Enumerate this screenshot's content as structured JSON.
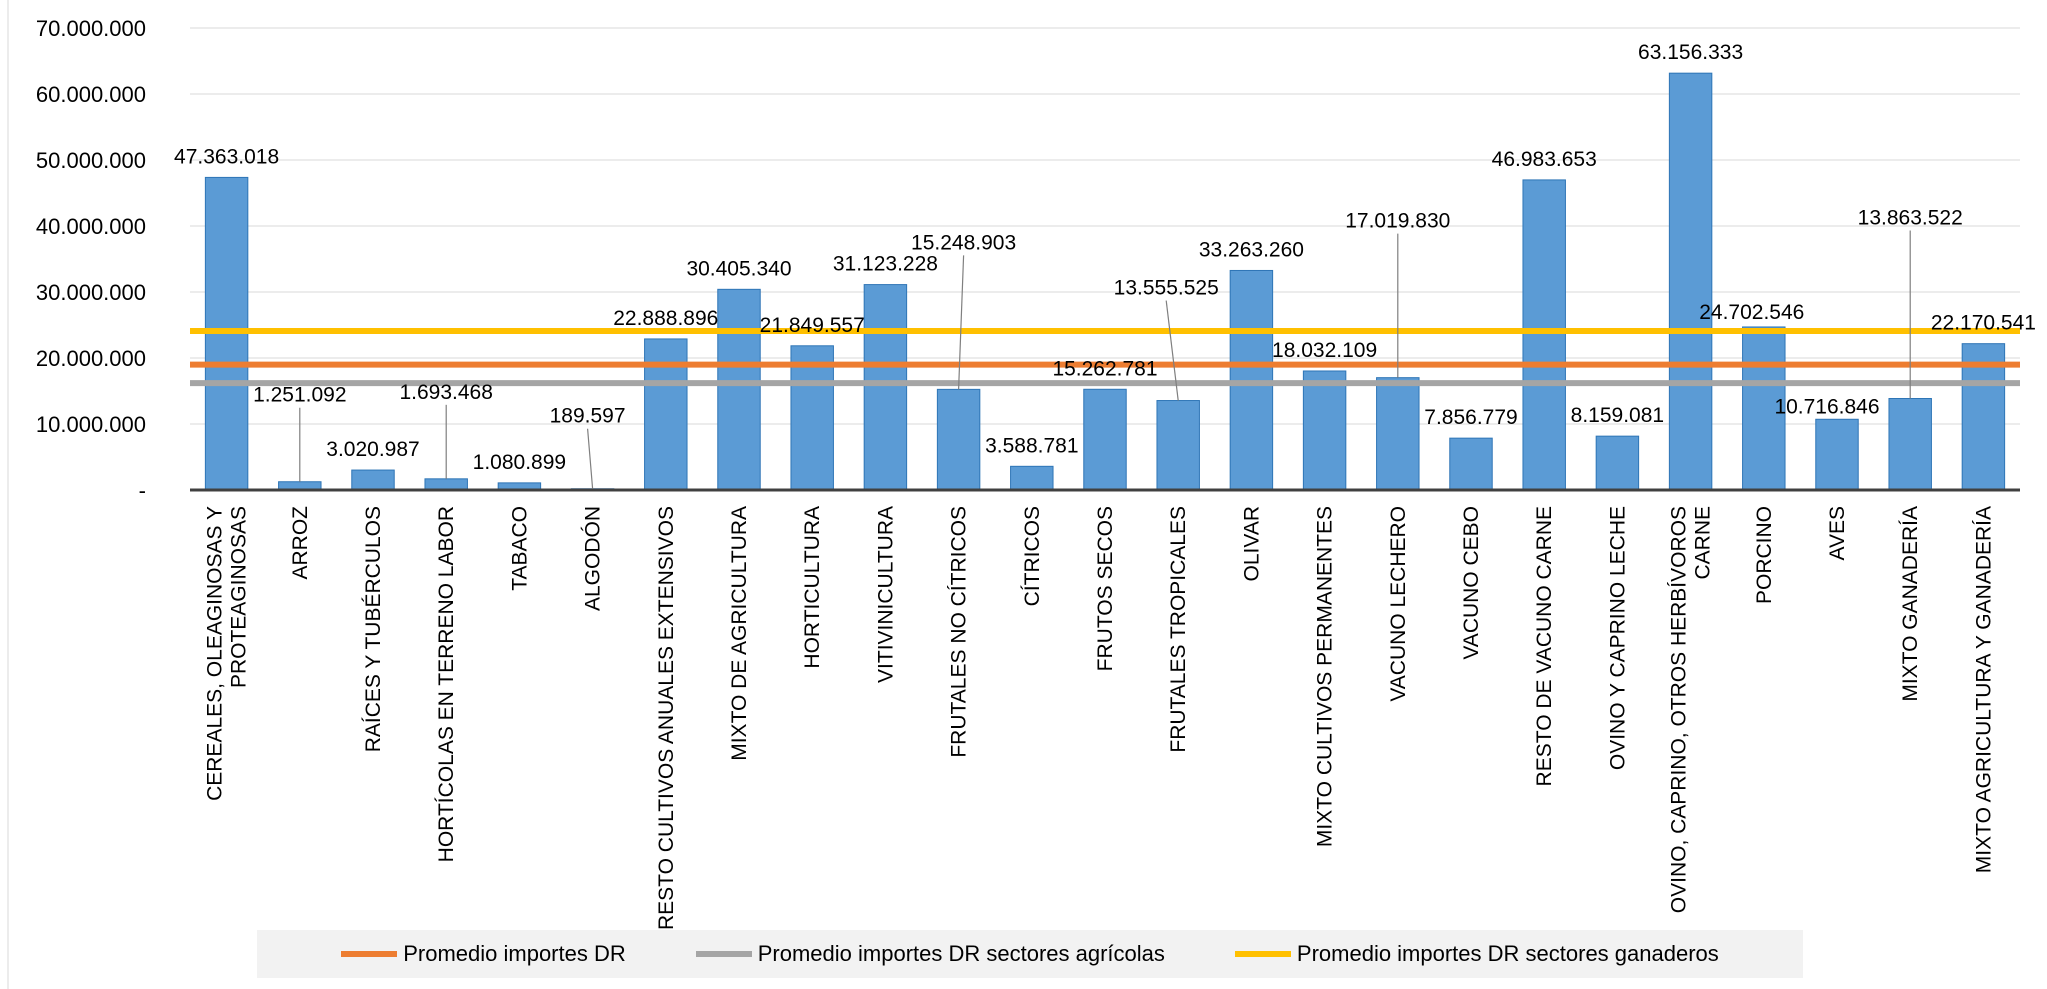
{
  "chart_data": {
    "type": "bar",
    "title": "",
    "xlabel": "",
    "ylabel": "",
    "ylim": [
      0,
      70000000
    ],
    "yticks": [
      {
        "value": 0,
        "label": "-"
      },
      {
        "value": 10000000,
        "label": "10.000.000"
      },
      {
        "value": 20000000,
        "label": "20.000.000"
      },
      {
        "value": 30000000,
        "label": "30.000.000"
      },
      {
        "value": 40000000,
        "label": "40.000.000"
      },
      {
        "value": 50000000,
        "label": "50.000.000"
      },
      {
        "value": 60000000,
        "label": "60.000.000"
      },
      {
        "value": 70000000,
        "label": "70.000.000"
      }
    ],
    "grid": true,
    "bar_color": "#5b9bd5",
    "bar_border_color": "#2e75b6",
    "categories": [
      [
        "CEREALES, OLEAGINOSAS Y",
        "PROTEAGINOSAS"
      ],
      [
        "ARROZ"
      ],
      [
        "RAÍCES Y TUBÉRCULOS"
      ],
      [
        "HORTÍCOLAS EN TERRENO LABOR"
      ],
      [
        "TABACO"
      ],
      [
        "ALGODÓN"
      ],
      [
        "RESTO CULTIVOS ANUALES EXTENSIVOS"
      ],
      [
        "MIXTO DE AGRICULTURA"
      ],
      [
        "HORTICULTURA"
      ],
      [
        "VITIVINICULTURA"
      ],
      [
        "FRUTALES NO CÍTRICOS"
      ],
      [
        "CÍTRICOS"
      ],
      [
        "FRUTOS SECOS"
      ],
      [
        "FRUTALES TROPICALES"
      ],
      [
        "OLIVAR"
      ],
      [
        "MIXTO CULTIVOS PERMANENTES"
      ],
      [
        "VACUNO LECHERO"
      ],
      [
        "VACUNO CEBO"
      ],
      [
        "RESTO DE VACUNO CARNE"
      ],
      [
        "OVINO Y CAPRINO LECHE"
      ],
      [
        "OVINO, CAPRINO, OTROS HERBÍVOROS",
        "CARNE"
      ],
      [
        "PORCINO"
      ],
      [
        "AVES"
      ],
      [
        "MIXTO GANADERÍA"
      ],
      [
        "MIXTO AGRICULTURA Y GANADERÍA"
      ]
    ],
    "values": [
      47363018,
      1251092,
      3020987,
      1693468,
      1080899,
      189597,
      22888896,
      30405340,
      21849557,
      31123228,
      15248903,
      3588781,
      15262781,
      13555525,
      33263260,
      18032109,
      17019830,
      7856779,
      46983653,
      8159081,
      63156333,
      24702546,
      10716846,
      13863522,
      22170541
    ],
    "data_labels": [
      "47.363.018",
      "1.251.092",
      "3.020.987",
      "1.693.468",
      "1.080.899",
      "189.597",
      "22.888.896",
      "30.405.340",
      "21.849.557",
      "31.123.228",
      "15.248.903",
      "3.588.781",
      "15.262.781",
      "13.555.525",
      "33.263.260",
      "18.032.109",
      "17.019.830",
      "7.856.779",
      "46.983.653",
      "8.159.081",
      "63.156.333",
      "24.702.546",
      "10.716.846",
      "13.863.522",
      "22.170.541"
    ],
    "reference_lines": [
      {
        "name": "Promedio importes DR",
        "value": 19000000,
        "color": "#ed7d31"
      },
      {
        "name": "Promedio importes DR sectores agrícolas",
        "value": 16200000,
        "color": "#a5a5a5"
      },
      {
        "name": "Promedio importes DR sectores ganaderos",
        "value": 24100000,
        "color": "#ffc000"
      }
    ],
    "legend": {
      "placement": "bottom"
    }
  }
}
